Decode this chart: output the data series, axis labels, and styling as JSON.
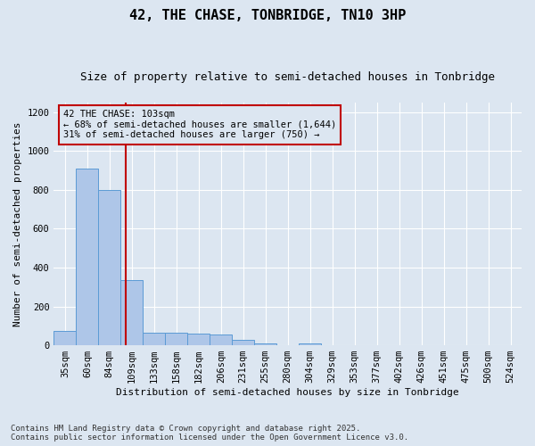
{
  "title": "42, THE CHASE, TONBRIDGE, TN10 3HP",
  "subtitle": "Size of property relative to semi-detached houses in Tonbridge",
  "xlabel": "Distribution of semi-detached houses by size in Tonbridge",
  "ylabel": "Number of semi-detached properties",
  "categories": [
    "35sqm",
    "60sqm",
    "84sqm",
    "109sqm",
    "133sqm",
    "158sqm",
    "182sqm",
    "206sqm",
    "231sqm",
    "255sqm",
    "280sqm",
    "304sqm",
    "329sqm",
    "353sqm",
    "377sqm",
    "402sqm",
    "426sqm",
    "451sqm",
    "475sqm",
    "500sqm",
    "524sqm"
  ],
  "bar_heights": [
    75,
    910,
    800,
    335,
    65,
    65,
    60,
    55,
    30,
    10,
    0,
    10,
    0,
    0,
    0,
    0,
    0,
    0,
    0,
    0,
    0
  ],
  "bar_color": "#aec6e8",
  "bar_edge_color": "#5b9bd5",
  "background_color": "#dce6f1",
  "vline_x_index": 2.72,
  "vline_color": "#c00000",
  "annotation_text": "42 THE CHASE: 103sqm\n← 68% of semi-detached houses are smaller (1,644)\n31% of semi-detached houses are larger (750) →",
  "annotation_box_color": "#c00000",
  "ylim": [
    0,
    1250
  ],
  "yticks": [
    0,
    200,
    400,
    600,
    800,
    1000,
    1200
  ],
  "footnote": "Contains HM Land Registry data © Crown copyright and database right 2025.\nContains public sector information licensed under the Open Government Licence v3.0.",
  "title_fontsize": 11,
  "subtitle_fontsize": 9,
  "axis_label_fontsize": 8,
  "tick_fontsize": 7.5,
  "annotation_fontsize": 7.5,
  "footnote_fontsize": 6.5
}
